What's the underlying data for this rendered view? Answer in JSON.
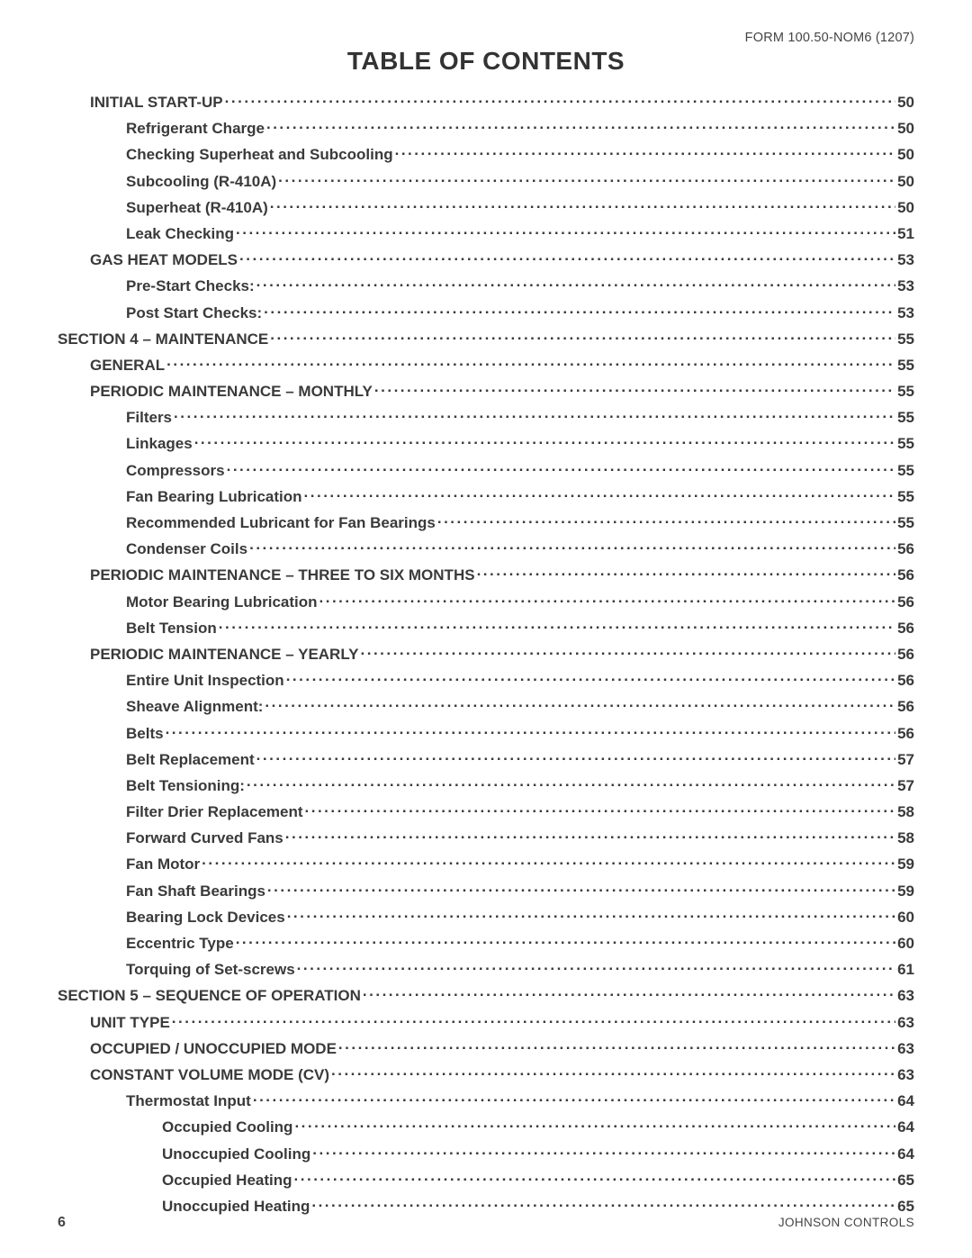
{
  "header": {
    "form_code": "FORM 100.50-NOM6 (1207)"
  },
  "title": "TABLE OF CONTENTS",
  "toc": [
    {
      "label": "INITIAL START-UP",
      "page": "50",
      "indent": 1
    },
    {
      "label": "Refrigerant Charge ",
      "page": "50",
      "indent": 2
    },
    {
      "label": "Checking Superheat and Subcooling",
      "page": "50",
      "indent": 2
    },
    {
      "label": "Subcooling (R-410A) ",
      "page": "50",
      "indent": 2
    },
    {
      "label": "Superheat (R-410A) ",
      "page": "50",
      "indent": 2
    },
    {
      "label": "Leak Checking ",
      "page": "51",
      "indent": 2
    },
    {
      "label": "GAS HEAT MODELS ",
      "page": "53",
      "indent": 1
    },
    {
      "label": "Pre-Start Checks:",
      "page": "53",
      "indent": 2
    },
    {
      "label": "Post Start Checks:",
      "page": "53",
      "indent": 2
    },
    {
      "label": "SECTION 4 – MAINTENANCE",
      "page": "55",
      "indent": 0
    },
    {
      "label": "GENERAL ",
      "page": "55",
      "indent": 1
    },
    {
      "label": "PERIODIC MAINTENANCE – MONTHLY",
      "page": "55",
      "indent": 1
    },
    {
      "label": "Filters",
      "page": "55",
      "indent": 2
    },
    {
      "label": "Linkages",
      "page": "55",
      "indent": 2
    },
    {
      "label": "Compressors",
      "page": "55",
      "indent": 2
    },
    {
      "label": "Fan Bearing Lubrication ",
      "page": "55",
      "indent": 2
    },
    {
      "label": "Recommended Lubricant for Fan Bearings",
      "page": "55",
      "indent": 2
    },
    {
      "label": "Condenser Coils ",
      "page": "56",
      "indent": 2
    },
    {
      "label": "PERIODIC MAINTENANCE – THREE TO SIX MONTHS ",
      "page": "56",
      "indent": 1
    },
    {
      "label": "Motor Bearing Lubrication",
      "page": "56",
      "indent": 2
    },
    {
      "label": "Belt Tension ",
      "page": "56",
      "indent": 2
    },
    {
      "label": "PERIODIC MAINTENANCE – YEARLY",
      "page": "56",
      "indent": 1
    },
    {
      "label": "Entire Unit Inspection",
      "page": "56",
      "indent": 2
    },
    {
      "label": "Sheave Alignment: ",
      "page": "56",
      "indent": 2
    },
    {
      "label": "Belts",
      "page": "56",
      "indent": 2
    },
    {
      "label": "Belt Replacement",
      "page": "57",
      "indent": 2
    },
    {
      "label": "Belt Tensioning:",
      "page": "57",
      "indent": 2
    },
    {
      "label": "Filter Drier Replacement ",
      "page": "58",
      "indent": 2
    },
    {
      "label": "Forward Curved Fans",
      "page": "58",
      "indent": 2
    },
    {
      "label": "Fan Motor ",
      "page": "59",
      "indent": 2
    },
    {
      "label": "Fan Shaft Bearings",
      "page": "59",
      "indent": 2
    },
    {
      "label": "Bearing Lock Devices ",
      "page": "60",
      "indent": 2
    },
    {
      "label": "Eccentric Type ",
      "page": "60",
      "indent": 2
    },
    {
      "label": "Torquing of Set-screws ",
      "page": "61",
      "indent": 2
    },
    {
      "label": "SECTION 5 – SEQUENCE OF OPERATION ",
      "page": "63",
      "indent": 0
    },
    {
      "label": "UNIT TYPE ",
      "page": "63",
      "indent": 1
    },
    {
      "label": "OCCUPIED / UNOCCUPIED MODE",
      "page": "63",
      "indent": 1
    },
    {
      "label": "CONSTANT VOLUME MODE (CV)",
      "page": "63",
      "indent": 1
    },
    {
      "label": "Thermostat Input ",
      "page": "64",
      "indent": 2
    },
    {
      "label": "Occupied Cooling ",
      "page": "64",
      "indent": 3
    },
    {
      "label": "Unoccupied Cooling",
      "page": "64",
      "indent": 3
    },
    {
      "label": "Occupied Heating ",
      "page": "65",
      "indent": 3
    },
    {
      "label": "Unoccupied Heating ",
      "page": "65",
      "indent": 3
    }
  ],
  "footer": {
    "page_number": "6",
    "brand": "JOHNSON CONTROLS"
  }
}
